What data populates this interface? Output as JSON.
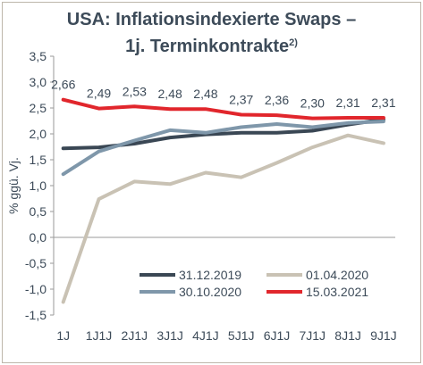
{
  "chart_data": {
    "type": "line",
    "title_line1": "USA: Inflationsindexierte Swaps –",
    "title_line2": "1j. Terminkontrakte",
    "title_superscript": "2)",
    "ylabel": "% ggü. Vj.",
    "xlabel": "",
    "ylim": [
      -1.5,
      3.5
    ],
    "yticks": [
      "3,5",
      "3,0",
      "2,5",
      "2,0",
      "1,5",
      "1,0",
      "0,5",
      "0,0",
      "-0,5",
      "-1,0",
      "-1,5"
    ],
    "categories": [
      "1J",
      "1J1J",
      "2J1J",
      "3J1J",
      "4J1J",
      "5J1J",
      "6J1J",
      "7J1J",
      "8J1J",
      "9J1J"
    ],
    "grid": false,
    "legend_position": "bottom-right",
    "series": [
      {
        "name": "31.12.2019",
        "color": "#3a4754",
        "values": [
          1.72,
          1.74,
          1.81,
          1.93,
          1.99,
          2.02,
          2.02,
          2.06,
          2.18,
          2.28
        ]
      },
      {
        "name": "01.04.2020",
        "color": "#c9c2b4",
        "values": [
          -1.25,
          0.74,
          1.08,
          1.03,
          1.25,
          1.16,
          1.44,
          1.74,
          1.97,
          1.82
        ]
      },
      {
        "name": "30.10.2020",
        "color": "#7f97aa",
        "values": [
          1.22,
          1.66,
          1.87,
          2.07,
          2.02,
          2.13,
          2.19,
          2.13,
          2.21,
          2.24
        ]
      },
      {
        "name": "15.03.2021",
        "color": "#e1262c",
        "values": [
          2.66,
          2.49,
          2.53,
          2.48,
          2.48,
          2.37,
          2.36,
          2.3,
          2.31,
          2.31
        ],
        "data_labels": [
          "2,66",
          "2,49",
          "2,53",
          "2,48",
          "2,48",
          "2,37",
          "2,36",
          "2,30",
          "2,31",
          "2,31"
        ]
      }
    ]
  }
}
